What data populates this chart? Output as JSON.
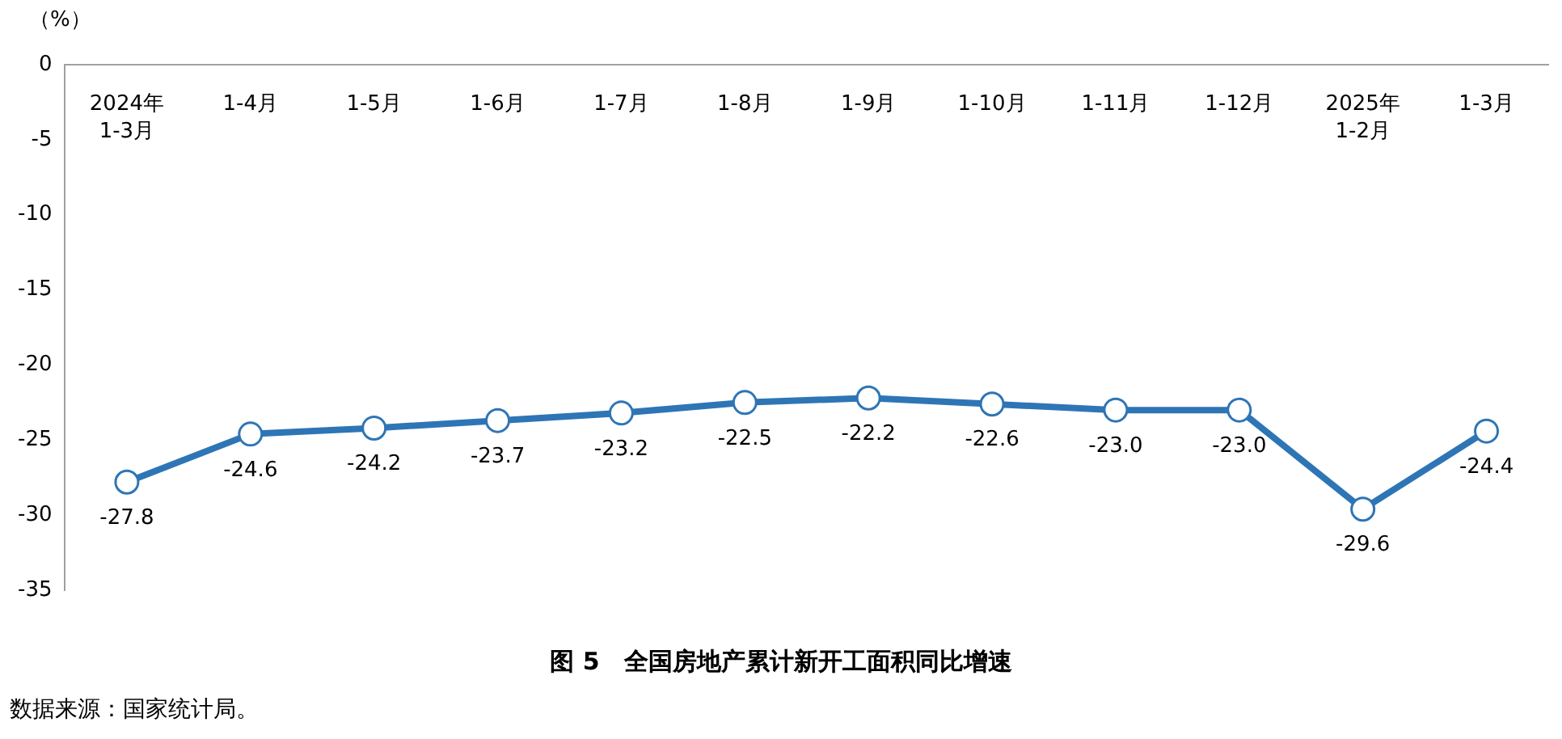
{
  "chart_data": {
    "type": "line",
    "title": "图 5　全国房地产累计新开工面积同比增速",
    "ylabel": "（%）",
    "annotations": [
      "数据来源：国家统计局。"
    ],
    "categories": [
      "2024年\n1-3月",
      "1-4月",
      "1-5月",
      "1-6月",
      "1-7月",
      "1-8月",
      "1-9月",
      "1-10月",
      "1-11月",
      "1-12月",
      "2025年\n1-2月",
      "1-3月"
    ],
    "series": [
      {
        "color": "#2e75b6",
        "values": [
          -27.8,
          -24.6,
          -24.2,
          -23.7,
          -23.2,
          -22.5,
          -22.2,
          -22.6,
          -23.0,
          -23.0,
          -29.6,
          -24.4
        ],
        "value_labels": [
          "-27.8",
          "-24.6",
          "-24.2",
          "-23.7",
          "-23.2",
          "-22.5",
          "-22.2",
          "-22.6",
          "-23.0",
          "-23.0",
          "-29.6",
          "-24.4"
        ]
      }
    ],
    "ylim": [
      -35,
      0
    ],
    "yticks": [
      0,
      -5,
      -10,
      -15,
      -20,
      -25,
      -30,
      -35
    ],
    "grid": false,
    "legend": false,
    "marker": "circle",
    "line_style": "solid"
  }
}
